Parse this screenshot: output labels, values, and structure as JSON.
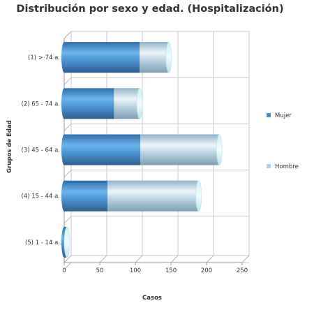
{
  "chart_data": {
    "type": "bar",
    "orientation": "horizontal",
    "stacked": true,
    "title": "Distribución por sexo y edad. (Hospitalización)",
    "xlabel": "Casos",
    "ylabel": "Grupos de Edad",
    "categories": [
      "(1) > 74 a.",
      "(2) 65 - 74 a.",
      "(3) 45 - 64 a.",
      "(4) 15 - 44 a.",
      "(5) 1 - 14 a."
    ],
    "series": [
      {
        "name": "Mujer",
        "values": [
          106,
          70,
          107,
          61,
          3
        ],
        "color": "#4a8fd0"
      },
      {
        "name": "Hombre",
        "values": [
          41,
          36,
          111,
          128,
          1
        ],
        "color": "#a9d3ee"
      }
    ],
    "xlim": [
      0,
      250
    ],
    "xticks": [
      0,
      50,
      100,
      150,
      200,
      250
    ],
    "grid": true,
    "legend_position": "right"
  }
}
